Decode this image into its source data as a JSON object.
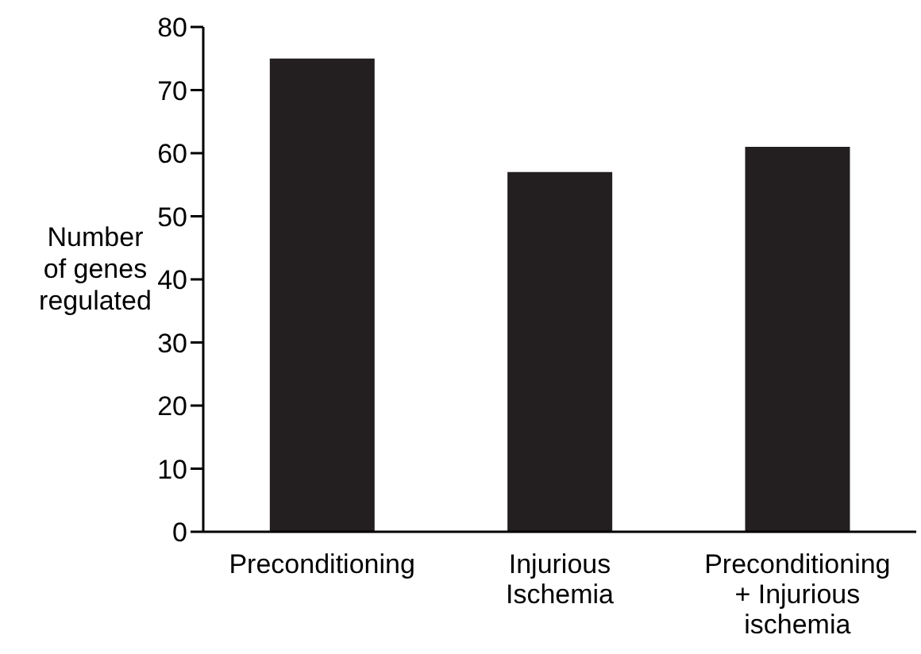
{
  "chart_data": {
    "type": "bar",
    "categories": [
      "Preconditioning",
      "Injurious\nIschemia",
      "Preconditioning\n+ Injurious\nischemia"
    ],
    "values": [
      75,
      57,
      61
    ],
    "color": "#231f20",
    "ylabel": "Number\nof genes\nregulated",
    "ylim": [
      0,
      80
    ],
    "yticks": [
      0,
      10,
      20,
      30,
      40,
      50,
      60,
      70,
      80
    ],
    "grid": false,
    "legend": false
  }
}
